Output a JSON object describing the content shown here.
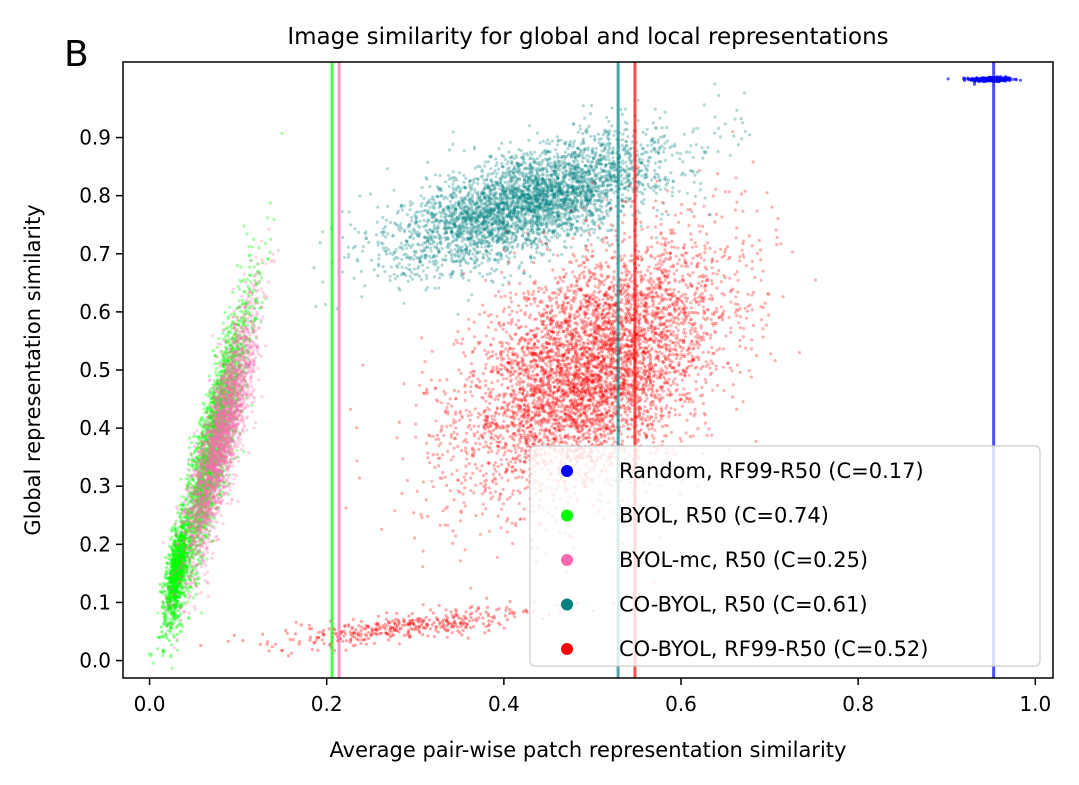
{
  "panel_label": "B",
  "chart_data": {
    "type": "scatter",
    "title": "Image similarity for global and local representations",
    "xlabel": "Average pair-wise patch representation similarity",
    "ylabel": "Global representation similarity",
    "xlim": [
      -0.03,
      1.02
    ],
    "ylim": [
      -0.03,
      1.03
    ],
    "xticks": [
      0.0,
      0.2,
      0.4,
      0.6,
      0.8,
      1.0
    ],
    "xtick_labels": [
      "0.0",
      "0.2",
      "0.4",
      "0.6",
      "0.8",
      "1.0"
    ],
    "yticks": [
      0.0,
      0.1,
      0.2,
      0.3,
      0.4,
      0.5,
      0.6,
      0.7,
      0.8,
      0.9
    ],
    "ytick_labels": [
      "0.0",
      "0.1",
      "0.2",
      "0.3",
      "0.4",
      "0.5",
      "0.6",
      "0.7",
      "0.8",
      "0.9"
    ],
    "legend_position": "lower-right",
    "series": [
      {
        "name": "Random, RF99-R50 (C=0.17)",
        "color": "#0000ff",
        "vline_x": 0.953,
        "clusters": [
          {
            "cx": 0.95,
            "cy": 1.0,
            "sx": 0.012,
            "sy": 0.002,
            "rho": 0.0,
            "n": 300,
            "opacity": 0.6
          }
        ]
      },
      {
        "name": "BYOL, R50 (C=0.74)",
        "color": "#00ff00",
        "vline_x": 0.206,
        "clusters": [
          {
            "cx": 0.07,
            "cy": 0.36,
            "sx": 0.022,
            "sy": 0.13,
            "rho": 0.9,
            "n": 2600,
            "opacity": 0.35
          },
          {
            "cx": 0.03,
            "cy": 0.15,
            "sx": 0.006,
            "sy": 0.04,
            "rho": 0.6,
            "n": 700,
            "opacity": 0.45
          }
        ]
      },
      {
        "name": "BYOL-mc, R50 (C=0.25)",
        "color": "#ff69b4",
        "vline_x": 0.214,
        "clusters": [
          {
            "cx": 0.08,
            "cy": 0.38,
            "sx": 0.02,
            "sy": 0.11,
            "rho": 0.85,
            "n": 2600,
            "opacity": 0.3
          }
        ]
      },
      {
        "name": "CO-BYOL, R50 (C=0.61)",
        "color": "#008080",
        "vline_x": 0.529,
        "clusters": [
          {
            "cx": 0.43,
            "cy": 0.79,
            "sx": 0.075,
            "sy": 0.055,
            "rho": 0.65,
            "n": 3800,
            "opacity": 0.3
          }
        ]
      },
      {
        "name": "CO-BYOL, RF99-R50 (C=0.52)",
        "color": "#ff0000",
        "vline_x": 0.548,
        "clusters": [
          {
            "cx": 0.5,
            "cy": 0.5,
            "sx": 0.075,
            "sy": 0.11,
            "rho": 0.5,
            "n": 5200,
            "opacity": 0.3
          },
          {
            "cx": 0.3,
            "cy": 0.06,
            "sx": 0.08,
            "sy": 0.018,
            "rho": 0.8,
            "n": 400,
            "opacity": 0.35
          }
        ]
      }
    ]
  }
}
